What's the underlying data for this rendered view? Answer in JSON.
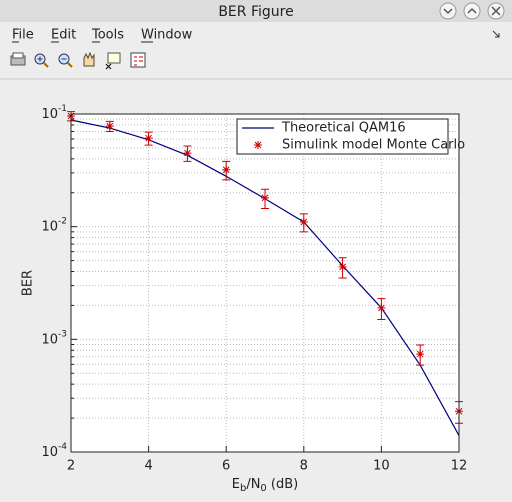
{
  "window": {
    "title": "BER Figure",
    "menu": [
      "File",
      "Edit",
      "Tools",
      "Window"
    ]
  },
  "chart_data": {
    "type": "line",
    "ylabel": "BER",
    "xlabel": [
      {
        "text": "E"
      },
      {
        "text": "b",
        "sub": true
      },
      {
        "text": "/N"
      },
      {
        "text": "0",
        "sub": true
      },
      {
        "text": " (dB)"
      }
    ],
    "x": [
      2,
      3,
      4,
      5,
      6,
      7,
      8,
      9,
      10,
      11,
      12
    ],
    "series": [
      {
        "name": "Theoretical QAM16",
        "color": "#000080",
        "style": "line",
        "values": [
          0.0885,
          0.075,
          0.059,
          0.043,
          0.028,
          0.0177,
          0.011,
          0.0045,
          0.0019,
          0.00059,
          0.00014
        ]
      },
      {
        "name": "Simulink model Monte Carlo",
        "color": "#cc0000",
        "style": "asterisk",
        "values": [
          0.096,
          0.078,
          0.061,
          0.045,
          0.032,
          0.018,
          0.011,
          0.0044,
          0.0019,
          0.00074,
          0.00023
        ],
        "errors": [
          0.009,
          0.008,
          0.008,
          0.007,
          0.006,
          0.0035,
          0.002,
          0.0009,
          0.0004,
          0.00015,
          5e-05
        ]
      }
    ],
    "xlim": [
      2,
      12
    ],
    "xticks": [
      2,
      4,
      6,
      8,
      10,
      12
    ],
    "ylim": [
      0.0001,
      0.1
    ],
    "log_y": true,
    "yticks": [
      {
        "value": 0.0001,
        "label": "10^-4"
      },
      {
        "value": 0.001,
        "label": "10^-3"
      },
      {
        "value": 0.01,
        "label": "10^-2"
      },
      {
        "value": 0.1,
        "label": "10^-1"
      }
    ],
    "yminorticks": [
      0.0002,
      0.0003,
      0.0004,
      0.0005,
      0.0006,
      0.0007,
      0.0008,
      0.0009,
      0.002,
      0.003,
      0.004,
      0.005,
      0.006,
      0.007,
      0.008,
      0.009,
      0.02,
      0.03,
      0.04,
      0.05,
      0.06,
      0.07,
      0.08,
      0.09
    ],
    "grid": true,
    "legend": "upper right"
  }
}
